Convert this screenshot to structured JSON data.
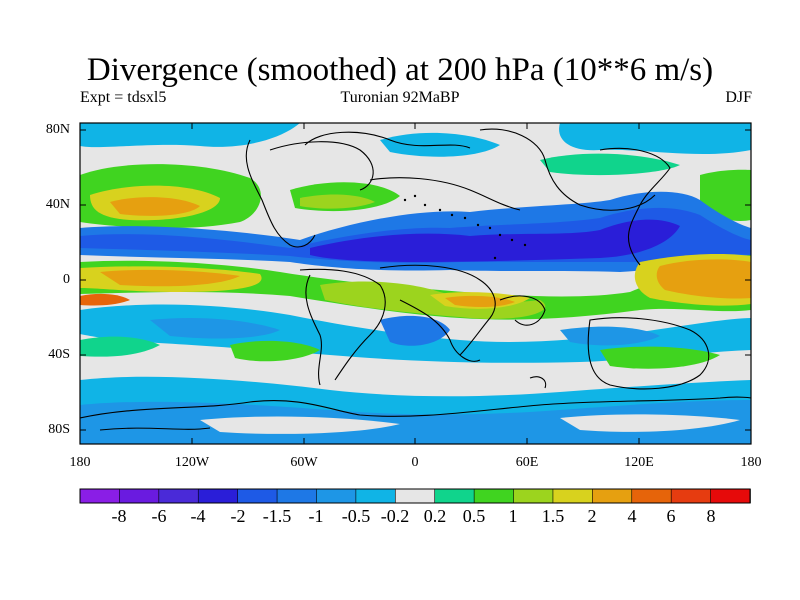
{
  "title": "Divergence (smoothed) at 200 hPa (10**6 m/s)",
  "subtitle_left": "Expt = tdsxl5",
  "subtitle_center": "Turonian  92MaBP",
  "subtitle_right": "DJF",
  "y_ticks": [
    "80N",
    "40N",
    "0",
    "40S",
    "80S"
  ],
  "x_ticks": [
    "180",
    "120W",
    "60W",
    "0",
    "60E",
    "120E",
    "180"
  ],
  "colorbar": {
    "labels": [
      "-8",
      "-6",
      "-4",
      "-2",
      "-1.5",
      "-1",
      "-0.5",
      "-0.2",
      "0.2",
      "0.5",
      "1",
      "1.5",
      "2",
      "4",
      "6",
      "8"
    ],
    "colors": [
      "#8a1ee6",
      "#6a1be0",
      "#4a2ad8",
      "#2a1ed8",
      "#1e5ae6",
      "#1e78e6",
      "#1e96e6",
      "#10b4e6",
      "#e6e6e6",
      "#10d48c",
      "#40d420",
      "#9cd41e",
      "#d8d21e",
      "#e6a010",
      "#e6640a",
      "#e63c10",
      "#e60a0a"
    ]
  }
}
